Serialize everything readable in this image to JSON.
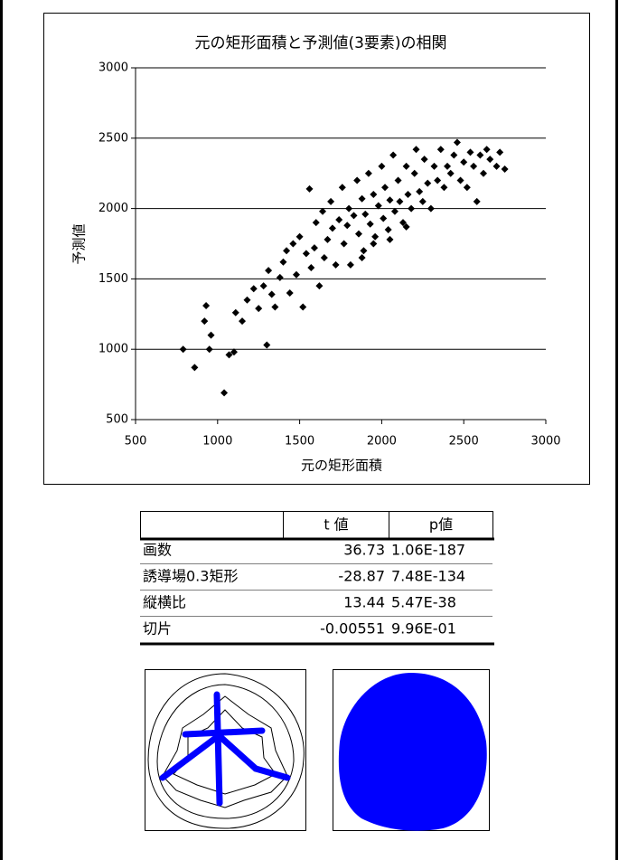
{
  "chart_data": {
    "type": "scatter",
    "title": "元の矩形面積と予測値(3要素)の相関",
    "x_label": "元の矩形面積",
    "y_label": "予測値",
    "color": "#000000",
    "grid": true,
    "xlim": [
      500,
      3000
    ],
    "ylim": [
      500,
      3000
    ],
    "xticks": [
      500,
      1000,
      1500,
      2000,
      2500,
      3000
    ],
    "yticks": [
      500,
      1000,
      1500,
      2000,
      2500,
      3000
    ],
    "x": [
      790,
      860,
      920,
      930,
      950,
      960,
      1040,
      1070,
      1100,
      1110,
      1150,
      1180,
      1220,
      1250,
      1280,
      1300,
      1310,
      1330,
      1350,
      1380,
      1400,
      1420,
      1440,
      1460,
      1480,
      1500,
      1520,
      1540,
      1560,
      1570,
      1590,
      1600,
      1620,
      1640,
      1650,
      1670,
      1690,
      1700,
      1720,
      1740,
      1760,
      1770,
      1790,
      1800,
      1810,
      1830,
      1850,
      1860,
      1880,
      1890,
      1900,
      1920,
      1930,
      1950,
      1960,
      1980,
      2000,
      2010,
      2020,
      2040,
      2050,
      2070,
      2080,
      2100,
      2110,
      2130,
      2150,
      2160,
      2180,
      2200,
      2210,
      2230,
      2250,
      2260,
      2280,
      2300,
      2320,
      2340,
      2360,
      2380,
      2400,
      2420,
      2440,
      2460,
      2480,
      2500,
      2520,
      2540,
      2560,
      2580,
      2600,
      2620,
      2640,
      2660,
      2700,
      2720,
      2750,
      1880,
      1950,
      2050,
      2150
    ],
    "values": [
      1000,
      870,
      1200,
      1310,
      1000,
      1100,
      690,
      960,
      980,
      1260,
      1200,
      1350,
      1430,
      1290,
      1450,
      1030,
      1560,
      1390,
      1300,
      1510,
      1620,
      1700,
      1400,
      1750,
      1530,
      1800,
      1300,
      1680,
      2140,
      1580,
      1720,
      1900,
      1450,
      1980,
      1650,
      1780,
      2050,
      1860,
      1600,
      1920,
      2150,
      1750,
      1880,
      2000,
      1600,
      1950,
      2200,
      1820,
      2070,
      1700,
      1960,
      2250,
      1890,
      2100,
      1800,
      2020,
      2300,
      1930,
      2150,
      1850,
      2060,
      2380,
      1980,
      2200,
      2050,
      1900,
      2300,
      2100,
      2000,
      2250,
      2420,
      2120,
      2050,
      2350,
      2180,
      2000,
      2300,
      2200,
      2420,
      2150,
      2300,
      2250,
      2380,
      2470,
      2200,
      2330,
      2150,
      2400,
      2300,
      2050,
      2380,
      2250,
      2420,
      2350,
      2300,
      2400,
      2280,
      1650,
      1750,
      1780,
      1870
    ]
  },
  "table": {
    "header": [
      "t 値",
      "p値"
    ],
    "rows": [
      [
        "画数",
        "36.73",
        "1.06E-187"
      ],
      [
        "誘導場0.3矩形",
        "-28.87",
        "7.48E-134"
      ],
      [
        "縦横比",
        "13.44",
        "5.47E-38"
      ],
      [
        "切片",
        "-0.00551",
        "9.96E-01"
      ]
    ]
  }
}
